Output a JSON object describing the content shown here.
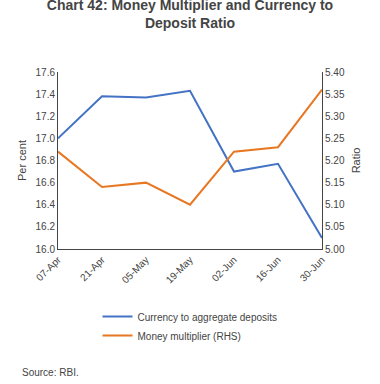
{
  "chart_data": {
    "type": "line",
    "title": "Chart 42: Money Multiplier and Currency to\nDeposit Ratio",
    "categories": [
      "07-Apr",
      "21-Apr",
      "05-May",
      "19-May",
      "02-Jun",
      "16-Jun",
      "30-Jun"
    ],
    "series": [
      {
        "name": "Currency to aggregate deposits",
        "color": "#4472C4",
        "values": [
          17.0,
          17.38,
          17.37,
          17.43,
          16.7,
          16.77,
          16.1
        ]
      },
      {
        "name": "Money multiplier (RHS)",
        "color": "#E87722",
        "axis": "y2",
        "values": [
          5.22,
          5.14,
          5.15,
          5.1,
          5.22,
          5.23,
          5.36
        ]
      }
    ],
    "ylabel": "Per cent",
    "y2label": "Ratio",
    "ylim": [
      16.0,
      17.6
    ],
    "yticks": [
      {
        "value": 16.0,
        "label": "16.0"
      },
      16.2,
      16.4,
      16.6,
      16.8,
      {
        "value": 17.0,
        "label": "17.0"
      },
      17.2,
      17.4,
      17.6
    ],
    "y2lim": [
      5.0,
      5.4
    ],
    "y2ticks": [
      {
        "value": 5.0,
        "label": "5.00"
      },
      5.05,
      {
        "value": 5.1,
        "label": "5.10"
      },
      5.15,
      {
        "value": 5.2,
        "label": "5.20"
      },
      5.25,
      {
        "value": 5.3,
        "label": "5.30"
      },
      5.35,
      {
        "value": 5.4,
        "label": "5.40"
      }
    ],
    "annotations": [
      "Source: RBI."
    ],
    "grid": false,
    "legend": "bottom"
  }
}
